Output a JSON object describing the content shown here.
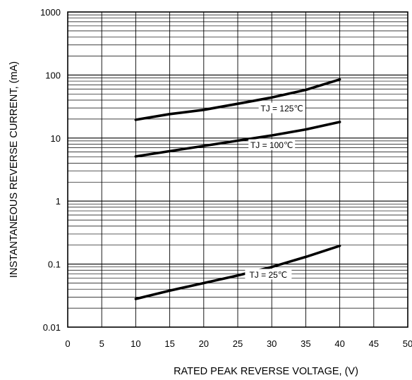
{
  "chart_data": {
    "type": "line",
    "xlabel": "RATED PEAK REVERSE VOLTAGE,  (V)",
    "ylabel": "INSTANTANEOUS REVERSE CURRENT, (mA)",
    "xlim": [
      0,
      50
    ],
    "ylim": [
      0.01,
      1000
    ],
    "yscale": "log",
    "grid": true,
    "x_ticks": [
      "0",
      "5",
      "10",
      "15",
      "20",
      "25",
      "30",
      "35",
      "40",
      "45",
      "50"
    ],
    "y_ticks": [
      "0.01",
      "0.1",
      "1",
      "10",
      "100",
      "1000"
    ],
    "series": [
      {
        "name": "TJ = 125℃",
        "x": [
          10,
          15,
          20,
          25,
          30,
          35,
          40
        ],
        "y": [
          19.5,
          24,
          28,
          35,
          44,
          58,
          85
        ]
      },
      {
        "name": "TJ = 100℃",
        "x": [
          10,
          15,
          20,
          25,
          30,
          35,
          40
        ],
        "y": [
          5.1,
          6.2,
          7.5,
          9.1,
          11,
          13.7,
          18
        ]
      },
      {
        "name": "TJ = 25℃",
        "x": [
          10,
          15,
          20,
          25,
          30,
          35,
          40
        ],
        "y": [
          0.028,
          0.038,
          0.05,
          0.066,
          0.09,
          0.13,
          0.195
        ]
      }
    ]
  }
}
